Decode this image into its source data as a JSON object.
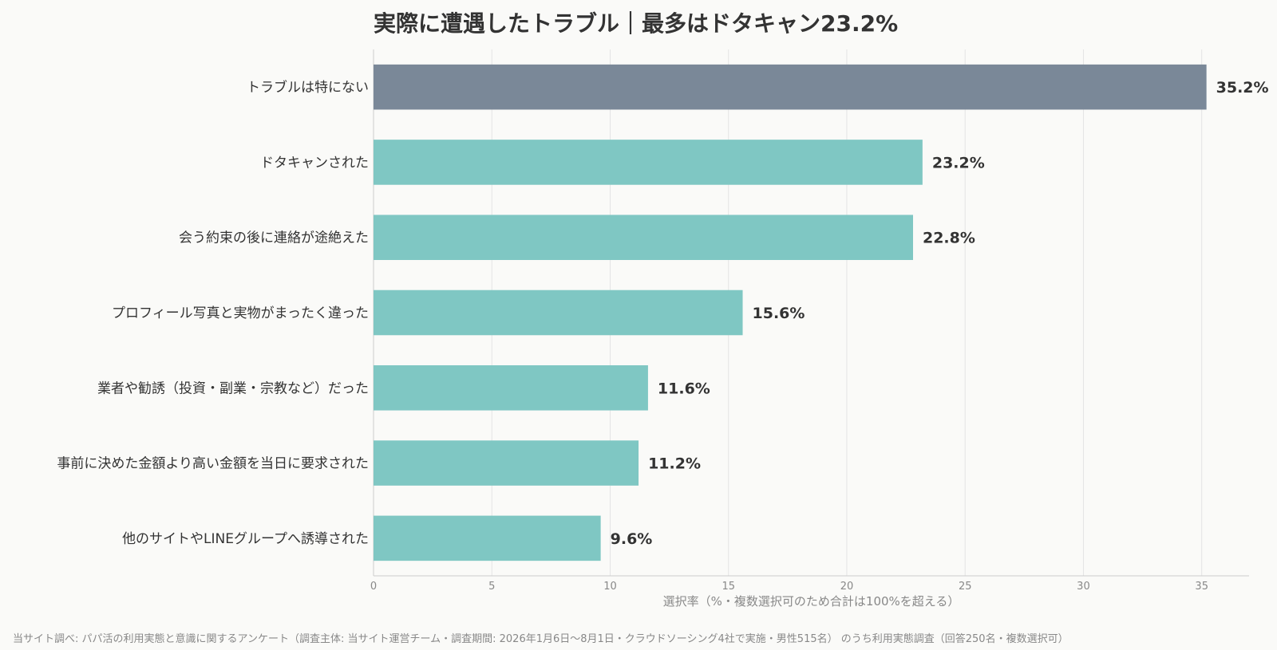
{
  "title": "実際に遭遇したトラブル｜最多はドタキャン23.2%",
  "footnote": "当サイト調べ: パパ活の利用実態と意識に関するアンケート（調査主体: 当サイト運営チーム・調査期間: 2026年1月6日〜8月1日・クラウドソーシング4社で実施・男性515名） のうち利用実態調査（回答250名・複数選択可）",
  "colors": {
    "highlight": "#7a8898",
    "bar": "#7fc7c3",
    "grid": "#e4e4e4",
    "axis": "#cccccc",
    "tick": "#888888",
    "label": "#333333"
  },
  "chart_data": {
    "type": "bar",
    "orientation": "horizontal",
    "title": "実際に遭遇したトラブル｜最多はドタキャン23.2%",
    "xlabel": "選択率（%・複数選択可のため合計は100%を超える）",
    "ylabel": "",
    "xlim": [
      0,
      37
    ],
    "xticks": [
      0,
      5,
      10,
      15,
      20,
      25,
      30,
      35
    ],
    "grid": true,
    "categories": [
      "トラブルは特にない",
      "ドタキャンされた",
      "会う約束の後に連絡が途絶えた",
      "プロフィール写真と実物がまったく違った",
      "業者や勧誘（投資・副業・宗教など）だった",
      "事前に決めた金額より高い金額を当日に要求された",
      "他のサイトやLINEグループへ誘導された"
    ],
    "values": [
      35.2,
      23.2,
      22.8,
      15.6,
      11.6,
      11.2,
      9.6
    ],
    "value_labels": [
      "35.2%",
      "23.2%",
      "22.8%",
      "15.6%",
      "11.6%",
      "11.2%",
      "9.6%"
    ],
    "highlight_index": 0
  }
}
